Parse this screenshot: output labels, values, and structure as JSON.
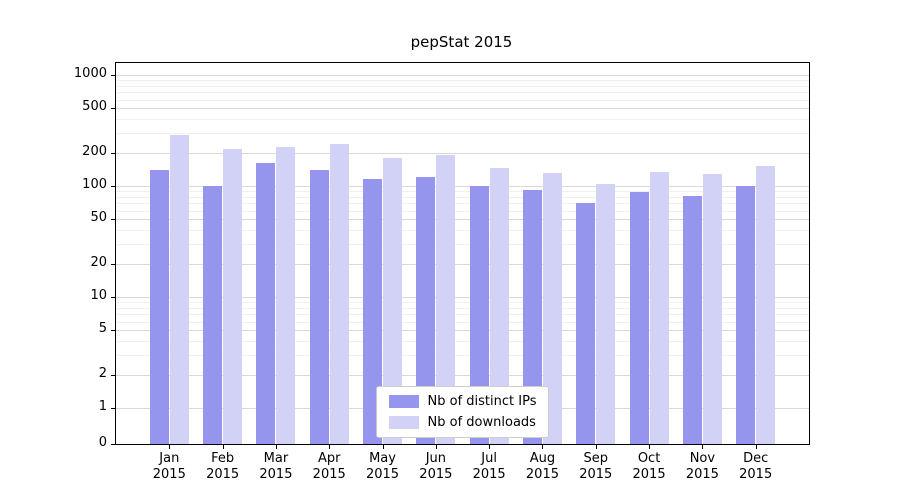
{
  "chart_data": {
    "type": "bar",
    "title": "pepStat 2015",
    "xlabel": "",
    "ylabel": "",
    "y_scale": "symlog",
    "grid": "horizontal",
    "legend_position": "lower center",
    "yticks": [
      0,
      1,
      2,
      5,
      10,
      20,
      50,
      100,
      200,
      500,
      1000
    ],
    "ylim": [
      0,
      1300
    ],
    "categories": [
      "Jan 2015",
      "Feb 2015",
      "Mar 2015",
      "Apr 2015",
      "May 2015",
      "Jun 2015",
      "Jul 2015",
      "Aug 2015",
      "Sep 2015",
      "Oct 2015",
      "Nov 2015",
      "Dec 2015"
    ],
    "series": [
      {
        "name": "Nb of distinct IPs",
        "color": "#9595ee",
        "values": [
          140,
          100,
          160,
          140,
          115,
          120,
          100,
          92,
          70,
          88,
          82,
          100
        ]
      },
      {
        "name": "Nb of downloads",
        "color": "#d2d2f7",
        "values": [
          290,
          215,
          225,
          240,
          180,
          190,
          145,
          130,
          105,
          135,
          128,
          150
        ]
      }
    ]
  }
}
